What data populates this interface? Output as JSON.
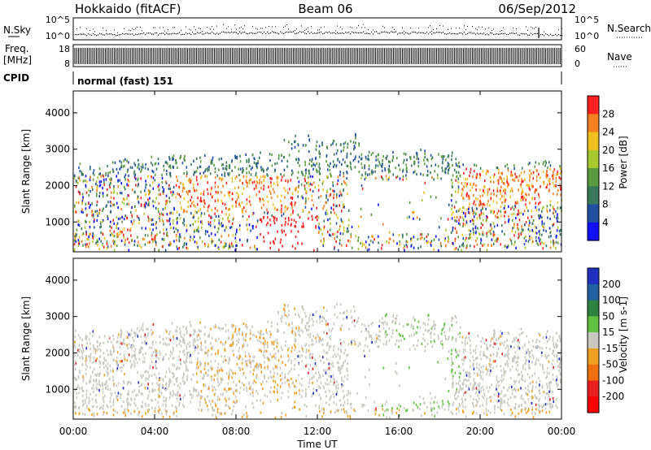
{
  "header": {
    "site": "Hokkaido (fitACF)",
    "beam": "Beam 06",
    "date": "06/Sep/2012"
  },
  "side_labels": {
    "nsky": "N.Sky",
    "nsearch": "N.Search",
    "freq": "Freq.",
    "freq_unit": "[MHz]",
    "nave": "Nave",
    "cpid": "CPID"
  },
  "cpid_text": "normal (fast) 151",
  "top_ticks": {
    "nsky_left": [
      "10^5",
      "10^0"
    ],
    "nsearch_right": [
      "10^5",
      "10^0"
    ],
    "freq_left": [
      "18",
      "8"
    ],
    "nave_right": [
      "60",
      "0"
    ]
  },
  "colors": {
    "power_scale": [
      "#1010ff",
      "#2050a0",
      "#3a7a5a",
      "#5a9a40",
      "#a8c830",
      "#f0c020",
      "#f08020",
      "#ff2020"
    ],
    "velocity_scale": [
      "#2030c0",
      "#2060a0",
      "#308040",
      "#60c040",
      "#c8c8c0",
      "#f0a020",
      "#f07010",
      "#e82020",
      "#ff0000"
    ]
  },
  "chart_data": [
    {
      "type": "heatmap",
      "name": "power-panel",
      "ylabel": "Slant Range [km]",
      "yticks": [
        1000,
        2000,
        3000,
        4000
      ],
      "ylim": [
        180,
        4600
      ],
      "xlim": [
        0,
        24
      ],
      "colorbar": {
        "label": "Power [dB]",
        "ticks": [
          "4",
          "8",
          "12",
          "16",
          "20",
          "24",
          "28"
        ]
      }
    },
    {
      "type": "heatmap",
      "name": "velocity-panel",
      "ylabel": "Slant Range [km]",
      "xlabel": "Time UT",
      "yticks": [
        1000,
        2000,
        3000,
        4000
      ],
      "ylim": [
        180,
        4600
      ],
      "xlim": [
        0,
        24
      ],
      "xticks": [
        "00:00",
        "04:00",
        "08:00",
        "12:00",
        "16:00",
        "20:00",
        "00:00"
      ],
      "colorbar": {
        "label": "Velocity [m s-1]",
        "ticks": [
          "200",
          "100",
          "50",
          "15",
          "-15",
          "-50",
          "-100",
          "-200"
        ]
      }
    }
  ]
}
